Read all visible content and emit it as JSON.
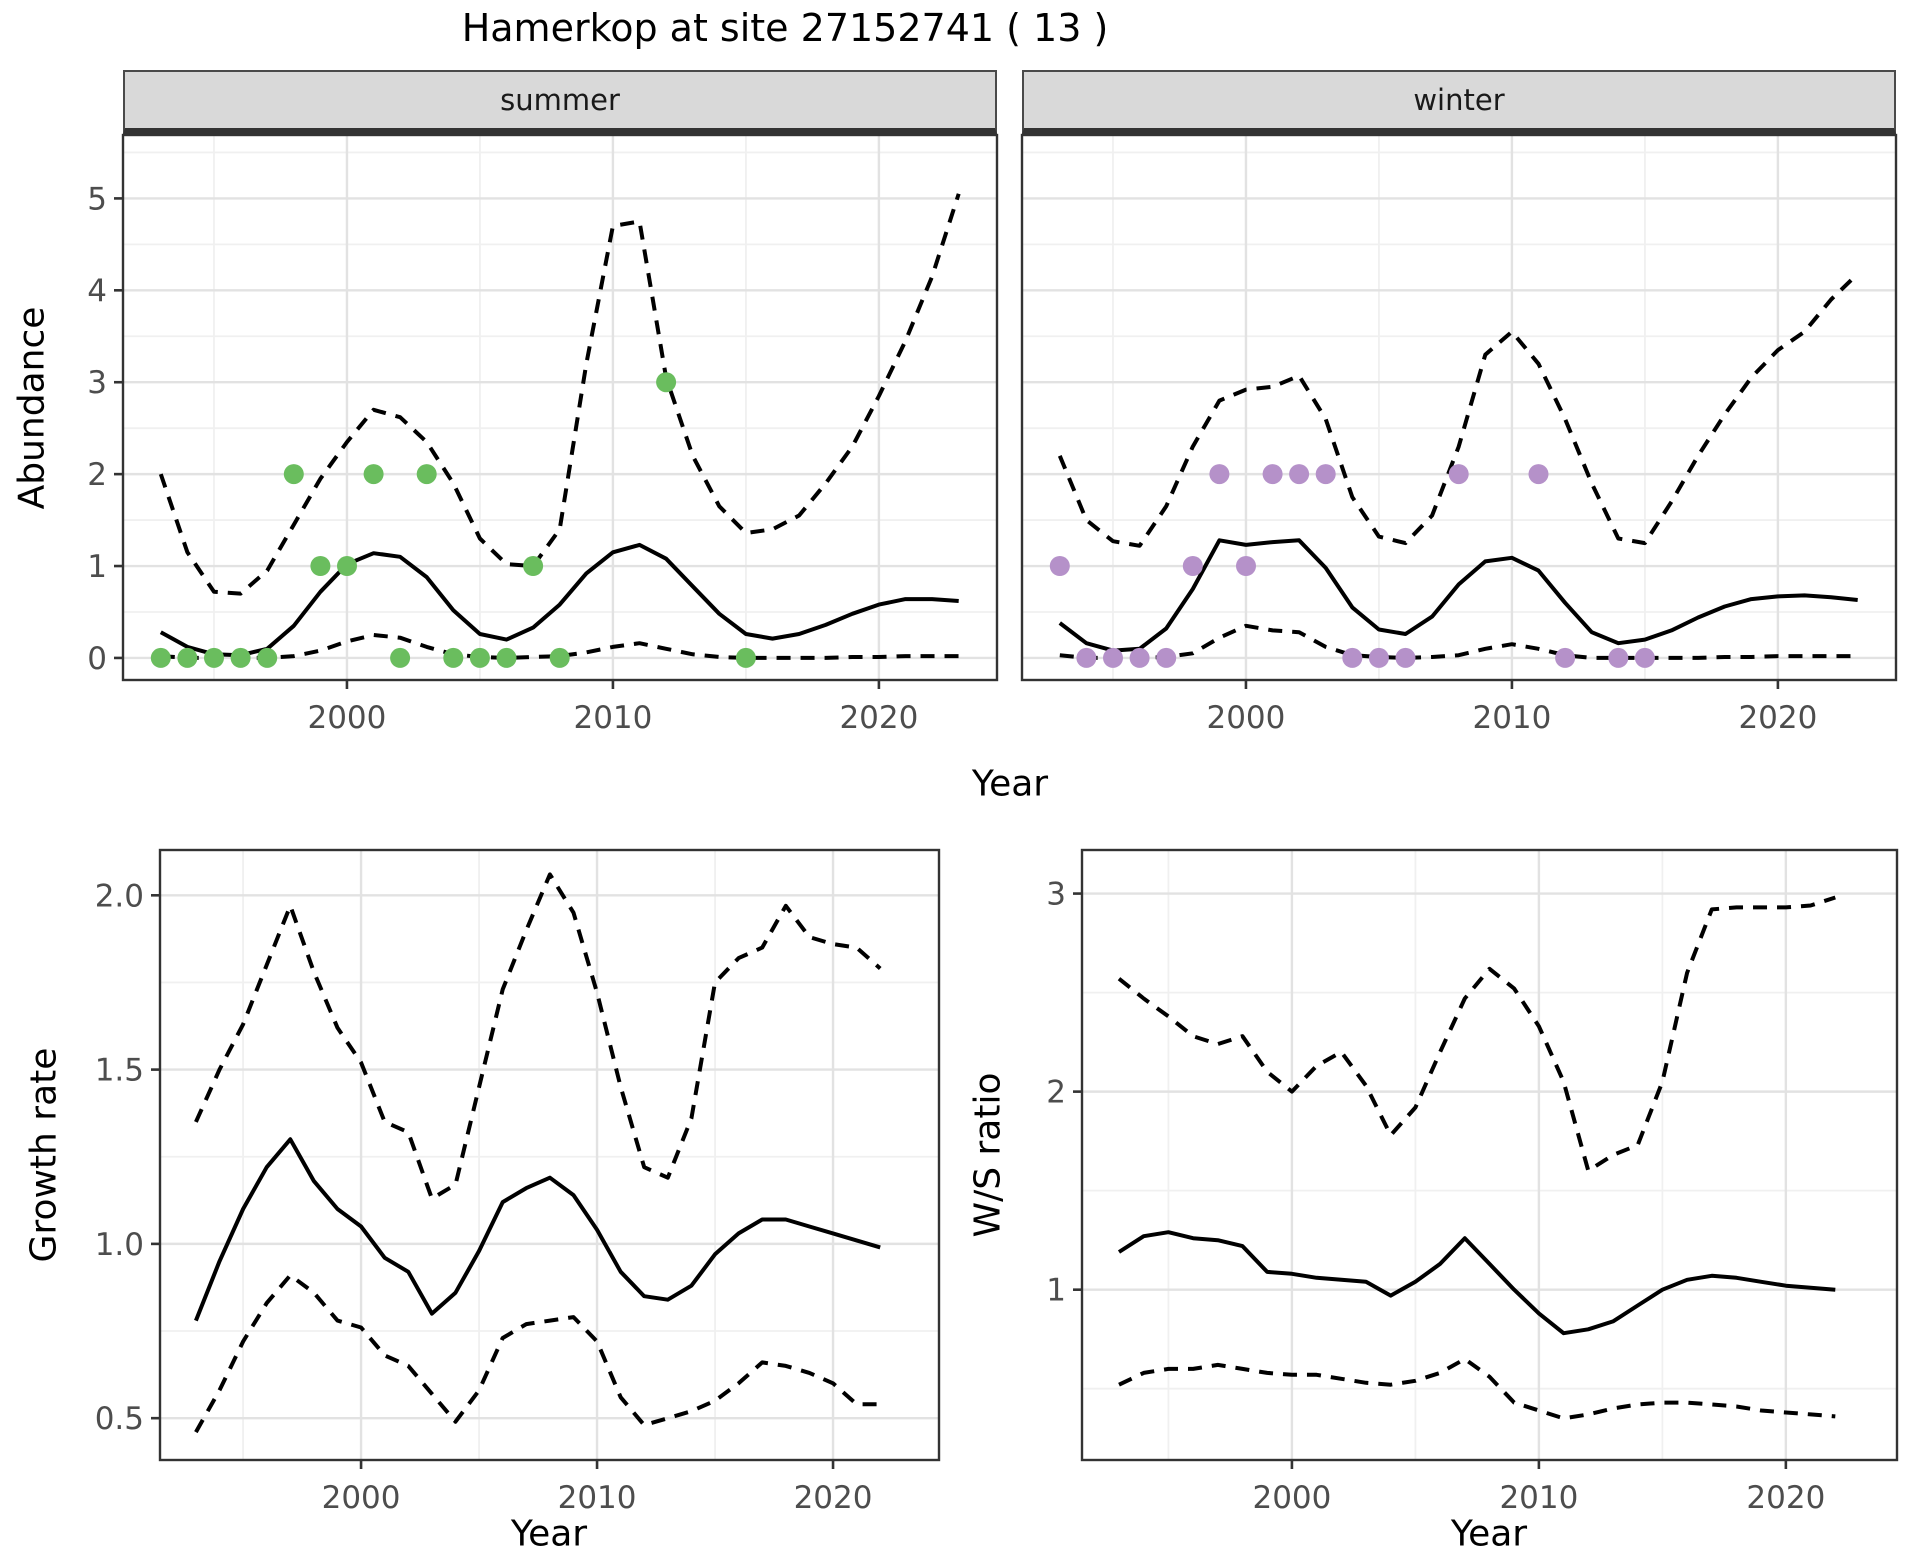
{
  "title": "Hamerkop at site 27152741 ( 13 )",
  "facets": {
    "summer": "summer",
    "winter": "winter"
  },
  "axes": {
    "abundance_label": "Abundance",
    "year_label": "Year",
    "growth_label": "Growth rate",
    "ws_label": "W/S ratio"
  },
  "colors": {
    "summer_point": "#6abd5e",
    "winter_point": "#b591c9",
    "line": "#000000",
    "grid_major": "#e2e2e2",
    "grid_minor": "#f0f0f0",
    "strip_bg": "#d9d9d9",
    "panel_border": "#333333",
    "tick_color": "#333333",
    "tick_text": "#4d4d4d"
  },
  "chart_data": [
    {
      "id": "abundance",
      "type": "line",
      "title": "Abundance by Year, faceted by season",
      "xlabel": "Year",
      "ylabel": "Abundance",
      "x": [
        1993,
        1994,
        1995,
        1996,
        1997,
        1998,
        1999,
        2000,
        2001,
        2002,
        2003,
        2004,
        2005,
        2006,
        2007,
        2008,
        2009,
        2010,
        2011,
        2012,
        2013,
        2014,
        2015,
        2016,
        2017,
        2018,
        2019,
        2020,
        2021,
        2022,
        2023
      ],
      "xlim": [
        1991.58,
        2024.44
      ],
      "ylim": [
        -0.24,
        5.69
      ],
      "x_ticks": [
        {
          "v": 2000,
          "label": "2000"
        },
        {
          "v": 2010,
          "label": "2010"
        },
        {
          "v": 2020,
          "label": "2020"
        }
      ],
      "x_minor": [
        1995,
        2005,
        2015
      ],
      "y_ticks": [
        {
          "v": 0,
          "label": "0"
        },
        {
          "v": 1,
          "label": "1"
        },
        {
          "v": 2,
          "label": "2"
        },
        {
          "v": 3,
          "label": "3"
        },
        {
          "v": 4,
          "label": "4"
        },
        {
          "v": 5,
          "label": "5"
        }
      ],
      "y_minor": [
        0.5,
        1.5,
        2.5,
        3.5,
        4.5,
        5.5
      ],
      "grid": true,
      "legend": "none",
      "facets": [
        {
          "label": "summer",
          "point_color": "#6abd5e",
          "series": [
            {
              "name": "mean",
              "style": "solid",
              "values": [
                0.28,
                0.12,
                0.04,
                0.03,
                0.1,
                0.35,
                0.72,
                1.02,
                1.14,
                1.1,
                0.88,
                0.52,
                0.26,
                0.2,
                0.33,
                0.58,
                0.92,
                1.15,
                1.23,
                1.08,
                0.78,
                0.48,
                0.26,
                0.21,
                0.26,
                0.36,
                0.48,
                0.58,
                0.64,
                0.64,
                0.62
              ]
            },
            {
              "name": "upper-ci",
              "style": "dashed",
              "values": [
                2.0,
                1.15,
                0.72,
                0.7,
                0.95,
                1.45,
                1.95,
                2.35,
                2.7,
                2.62,
                2.35,
                1.9,
                1.3,
                1.02,
                1.0,
                1.4,
                3.2,
                4.7,
                4.75,
                3.05,
                2.2,
                1.65,
                1.36,
                1.4,
                1.55,
                1.9,
                2.3,
                2.85,
                3.45,
                4.15,
                5.05
              ]
            },
            {
              "name": "lower-ci",
              "style": "dashed",
              "values": [
                0.02,
                0.0,
                0.0,
                0.0,
                0.0,
                0.02,
                0.08,
                0.18,
                0.25,
                0.22,
                0.12,
                0.04,
                0.01,
                0.0,
                0.01,
                0.02,
                0.06,
                0.12,
                0.16,
                0.1,
                0.04,
                0.01,
                0.0,
                0.0,
                0.0,
                0.0,
                0.01,
                0.01,
                0.02,
                0.02,
                0.02
              ]
            }
          ],
          "observations": [
            [
              1993,
              0
            ],
            [
              1994,
              0
            ],
            [
              1995,
              0
            ],
            [
              1996,
              0
            ],
            [
              1997,
              0
            ],
            [
              1998,
              2
            ],
            [
              1999,
              1
            ],
            [
              2000,
              1
            ],
            [
              2001,
              2
            ],
            [
              2002,
              0
            ],
            [
              2003,
              2
            ],
            [
              2004,
              0
            ],
            [
              2005,
              0
            ],
            [
              2006,
              0
            ],
            [
              2007,
              1
            ],
            [
              2008,
              0
            ],
            [
              2012,
              3
            ],
            [
              2015,
              0
            ]
          ]
        },
        {
          "label": "winter",
          "point_color": "#b591c9",
          "series": [
            {
              "name": "mean",
              "style": "solid",
              "values": [
                0.38,
                0.16,
                0.08,
                0.1,
                0.32,
                0.75,
                1.28,
                1.23,
                1.26,
                1.28,
                0.98,
                0.55,
                0.31,
                0.26,
                0.45,
                0.8,
                1.05,
                1.09,
                0.95,
                0.6,
                0.28,
                0.16,
                0.2,
                0.3,
                0.44,
                0.56,
                0.64,
                0.67,
                0.68,
                0.66,
                0.63
              ]
            },
            {
              "name": "upper-ci",
              "style": "dashed",
              "values": [
                2.2,
                1.5,
                1.27,
                1.22,
                1.65,
                2.3,
                2.8,
                2.92,
                2.95,
                3.07,
                2.6,
                1.75,
                1.32,
                1.25,
                1.55,
                2.3,
                3.3,
                3.55,
                3.2,
                2.6,
                1.9,
                1.3,
                1.25,
                1.7,
                2.2,
                2.65,
                3.05,
                3.35,
                3.55,
                3.9,
                4.18
              ]
            },
            {
              "name": "lower-ci",
              "style": "dashed",
              "values": [
                0.03,
                0.0,
                0.0,
                0.0,
                0.01,
                0.05,
                0.22,
                0.35,
                0.3,
                0.28,
                0.12,
                0.03,
                0.01,
                0.0,
                0.01,
                0.03,
                0.1,
                0.15,
                0.1,
                0.03,
                0.0,
                0.0,
                0.0,
                0.0,
                0.0,
                0.01,
                0.01,
                0.02,
                0.02,
                0.02,
                0.02
              ]
            }
          ],
          "observations": [
            [
              1993,
              1
            ],
            [
              1994,
              0
            ],
            [
              1995,
              0
            ],
            [
              1996,
              0
            ],
            [
              1997,
              0
            ],
            [
              1998,
              1
            ],
            [
              1999,
              2
            ],
            [
              2000,
              1
            ],
            [
              2001,
              2
            ],
            [
              2002,
              2
            ],
            [
              2003,
              2
            ],
            [
              2004,
              0
            ],
            [
              2005,
              0
            ],
            [
              2006,
              0
            ],
            [
              2008,
              2
            ],
            [
              2011,
              2
            ],
            [
              2012,
              0
            ],
            [
              2014,
              0
            ],
            [
              2015,
              0
            ]
          ]
        }
      ]
    },
    {
      "id": "growth-rate",
      "type": "line",
      "title": "Growth rate by Year",
      "xlabel": "Year",
      "ylabel": "Growth rate",
      "x": [
        1993,
        1994,
        1995,
        1996,
        1997,
        1998,
        1999,
        2000,
        2001,
        2002,
        2003,
        2004,
        2005,
        2006,
        2007,
        2008,
        2009,
        2010,
        2011,
        2012,
        2013,
        2014,
        2015,
        2016,
        2017,
        2018,
        2019,
        2020,
        2021,
        2022
      ],
      "xlim": [
        1991.48,
        2024.49
      ],
      "ylim": [
        0.38,
        2.13
      ],
      "x_ticks": [
        {
          "v": 2000,
          "label": "2000"
        },
        {
          "v": 2010,
          "label": "2010"
        },
        {
          "v": 2020,
          "label": "2020"
        }
      ],
      "x_minor": [
        1995,
        2005,
        2015
      ],
      "y_ticks": [
        {
          "v": 0.5,
          "label": "0.5"
        },
        {
          "v": 1.0,
          "label": "1.0"
        },
        {
          "v": 1.5,
          "label": "1.5"
        },
        {
          "v": 2.0,
          "label": "2.0"
        }
      ],
      "y_minor": [
        0.75,
        1.25,
        1.75
      ],
      "grid": true,
      "legend": "none",
      "series": [
        {
          "name": "mean",
          "style": "solid",
          "values": [
            0.78,
            0.95,
            1.1,
            1.22,
            1.3,
            1.18,
            1.1,
            1.05,
            0.96,
            0.92,
            0.8,
            0.86,
            0.98,
            1.12,
            1.16,
            1.19,
            1.14,
            1.04,
            0.92,
            0.85,
            0.84,
            0.88,
            0.97,
            1.03,
            1.07,
            1.07,
            1.05,
            1.03,
            1.01,
            0.99
          ]
        },
        {
          "name": "upper-ci",
          "style": "dashed",
          "values": [
            1.35,
            1.5,
            1.63,
            1.8,
            1.97,
            1.78,
            1.62,
            1.52,
            1.35,
            1.32,
            1.13,
            1.17,
            1.45,
            1.73,
            1.9,
            2.06,
            1.95,
            1.72,
            1.45,
            1.22,
            1.19,
            1.36,
            1.75,
            1.82,
            1.85,
            1.97,
            1.88,
            1.86,
            1.85,
            1.79
          ]
        },
        {
          "name": "lower-ci",
          "style": "dashed",
          "values": [
            0.46,
            0.58,
            0.72,
            0.83,
            0.91,
            0.86,
            0.78,
            0.76,
            0.68,
            0.65,
            0.57,
            0.49,
            0.58,
            0.73,
            0.77,
            0.78,
            0.79,
            0.72,
            0.56,
            0.48,
            0.5,
            0.52,
            0.55,
            0.6,
            0.66,
            0.65,
            0.63,
            0.6,
            0.54,
            0.54
          ]
        }
      ]
    },
    {
      "id": "ws-ratio",
      "type": "line",
      "title": "Winter/Summer ratio by Year",
      "xlabel": "Year",
      "ylabel": "W/S ratio",
      "x": [
        1993,
        1994,
        1995,
        1996,
        1997,
        1998,
        1999,
        2000,
        2001,
        2002,
        2003,
        2004,
        2005,
        2006,
        2007,
        2008,
        2009,
        2010,
        2011,
        2012,
        2013,
        2014,
        2015,
        2016,
        2017,
        2018,
        2019,
        2020,
        2021,
        2022
      ],
      "xlim": [
        1991.5,
        2024.5
      ],
      "ylim": [
        0.14,
        3.22
      ],
      "x_ticks": [
        {
          "v": 2000,
          "label": "2000"
        },
        {
          "v": 2010,
          "label": "2010"
        },
        {
          "v": 2020,
          "label": "2020"
        }
      ],
      "x_minor": [
        1995,
        2005,
        2015
      ],
      "y_ticks": [
        {
          "v": 1,
          "label": "1"
        },
        {
          "v": 2,
          "label": "2"
        },
        {
          "v": 3,
          "label": "3"
        }
      ],
      "y_minor": [
        0.5,
        1.5,
        2.5
      ],
      "grid": true,
      "legend": "none",
      "series": [
        {
          "name": "mean",
          "style": "solid",
          "values": [
            1.19,
            1.27,
            1.29,
            1.26,
            1.25,
            1.22,
            1.09,
            1.08,
            1.06,
            1.05,
            1.04,
            0.97,
            1.04,
            1.13,
            1.26,
            1.13,
            1.0,
            0.88,
            0.78,
            0.8,
            0.84,
            0.92,
            1.0,
            1.05,
            1.07,
            1.06,
            1.04,
            1.02,
            1.01,
            1.0
          ]
        },
        {
          "name": "upper-ci",
          "style": "dashed",
          "values": [
            2.57,
            2.47,
            2.38,
            2.28,
            2.24,
            2.28,
            2.1,
            2.0,
            2.13,
            2.2,
            2.03,
            1.78,
            1.92,
            2.2,
            2.47,
            2.62,
            2.52,
            2.33,
            2.05,
            1.6,
            1.68,
            1.73,
            2.05,
            2.6,
            2.92,
            2.93,
            2.93,
            2.93,
            2.94,
            2.98
          ]
        },
        {
          "name": "lower-ci",
          "style": "dashed",
          "values": [
            0.52,
            0.58,
            0.6,
            0.6,
            0.62,
            0.6,
            0.58,
            0.57,
            0.57,
            0.55,
            0.53,
            0.52,
            0.54,
            0.58,
            0.65,
            0.56,
            0.43,
            0.39,
            0.35,
            0.37,
            0.4,
            0.42,
            0.43,
            0.43,
            0.42,
            0.41,
            0.39,
            0.38,
            0.37,
            0.36
          ]
        }
      ]
    }
  ]
}
